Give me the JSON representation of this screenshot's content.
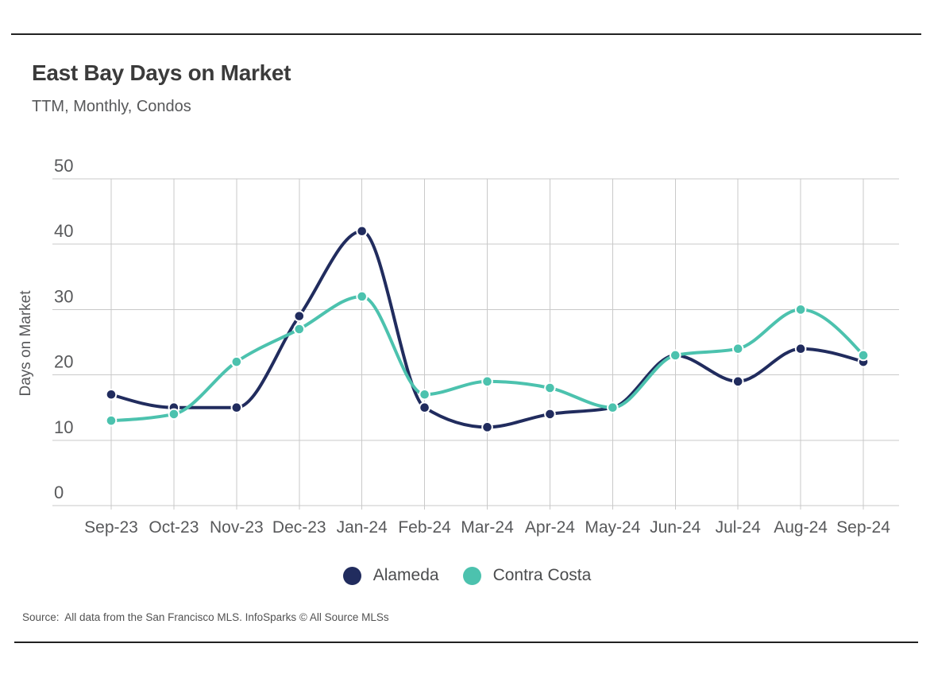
{
  "page": {
    "title": "East Bay Days on Market",
    "subtitle": "TTM, Monthly, Condos",
    "source": "Source:  All data from the San Francisco MLS. InfoSparks © All Source MLSs"
  },
  "legend": {
    "items": [
      {
        "label": "Alameda",
        "color": "#212c5e"
      },
      {
        "label": "Contra Costa",
        "color": "#4cc2ae"
      }
    ]
  },
  "chart_data": {
    "type": "line",
    "title": "East Bay Days on Market",
    "subtitle": "TTM, Monthly, Condos",
    "xlabel": "",
    "ylabel": "Days on Market",
    "categories": [
      "Sep-23",
      "Oct-23",
      "Nov-23",
      "Dec-23",
      "Jan-24",
      "Feb-24",
      "Mar-24",
      "Apr-24",
      "May-24",
      "Jun-24",
      "Jul-24",
      "Aug-24",
      "Sep-24"
    ],
    "series": [
      {
        "name": "Alameda",
        "color": "#212c5e",
        "values": [
          17,
          15,
          15,
          29,
          42,
          15,
          12,
          14,
          15,
          23,
          19,
          24,
          22
        ]
      },
      {
        "name": "Contra Costa",
        "color": "#4cc2ae",
        "values": [
          13,
          14,
          22,
          27,
          32,
          17,
          19,
          18,
          15,
          23,
          24,
          30,
          23
        ]
      }
    ],
    "ylim": [
      0,
      50
    ],
    "yticks": [
      0,
      10,
      20,
      30,
      40,
      50
    ],
    "grid": true,
    "legend_position": "bottom",
    "curve": "monotone"
  },
  "colors": {
    "background": "#ffffff",
    "gridline": "#c9c9c9",
    "axis_text": "#58595b",
    "title_text": "#3b3b3b",
    "rule": "#222222",
    "point_halo": "#ffffff"
  }
}
